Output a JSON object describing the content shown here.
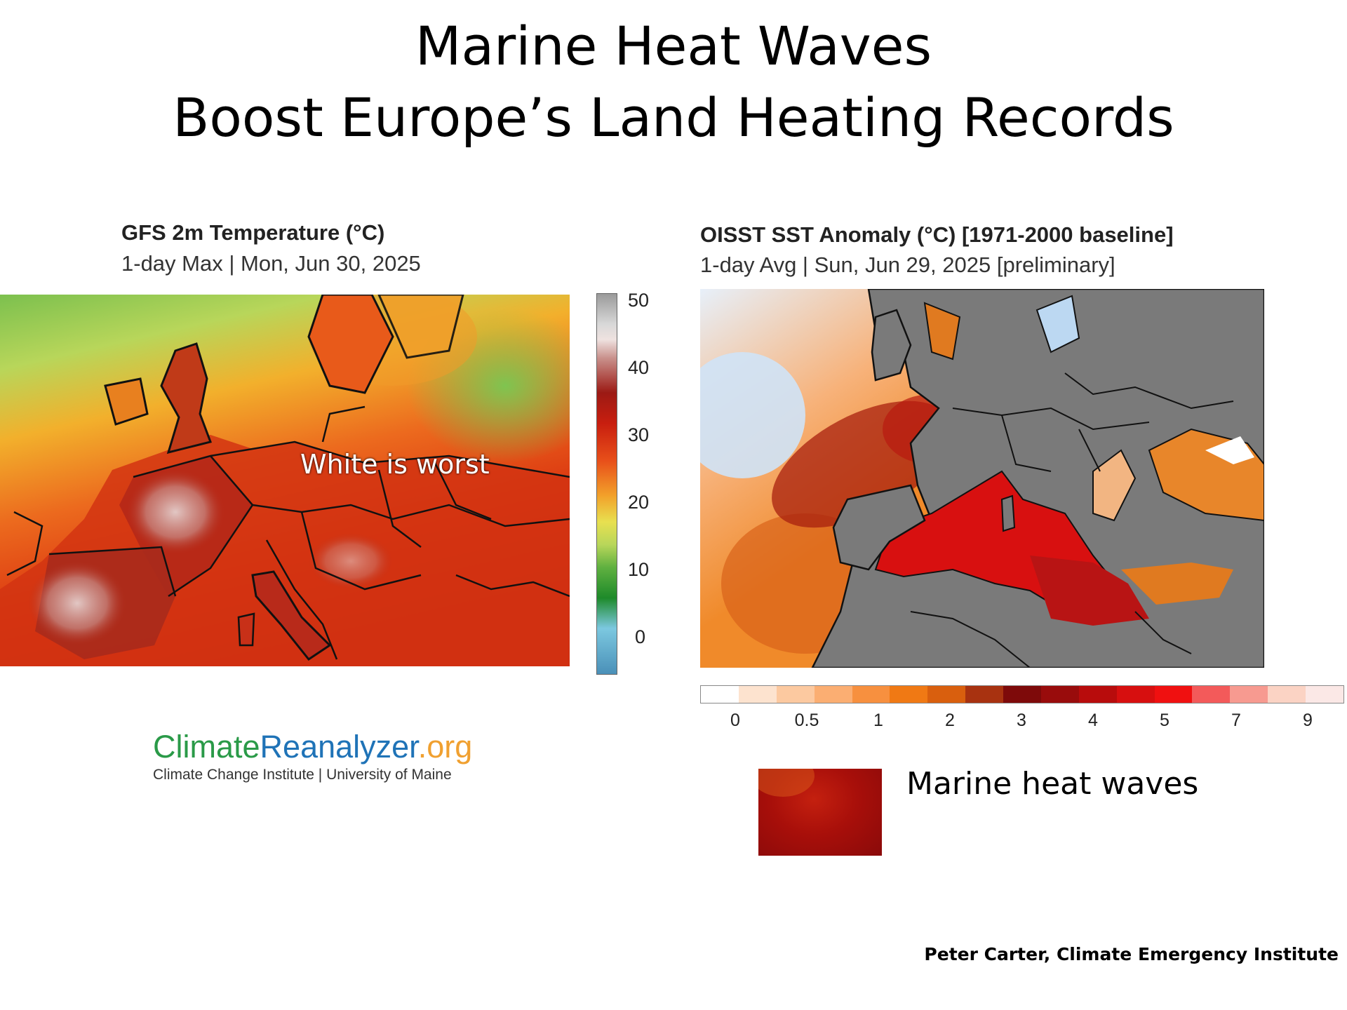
{
  "slide": {
    "title_line1": "Marine Heat Waves",
    "title_line2": "Boost Europe’s  Land Heating Records"
  },
  "left_map": {
    "title": "GFS 2m Temperature (°C)",
    "subtitle": "1-day Max | Mon, Jun 30, 2025",
    "annotation": "White is worst",
    "colorbar_ticks": [
      "50",
      "40",
      "30",
      "20",
      "10",
      "0"
    ],
    "colors": {
      "hot": "#c81e0f",
      "warm": "#e8501a",
      "mild": "#f7a02a",
      "cool": "#b8d65a",
      "cold": "#6fb84a",
      "extreme": "#d9b8b5"
    }
  },
  "right_map": {
    "title": "OISST SST Anomaly (°C) [1971-2000 baseline]",
    "subtitle": "1-day Avg | Sun, Jun 29, 2025 [preliminary]",
    "colorbar_ticks": [
      "0",
      "0.5",
      "1",
      "2",
      "3",
      "4",
      "5",
      "7",
      "9"
    ],
    "colorbar_colors": [
      "#ffffff",
      "#fde3cf",
      "#fcc9a0",
      "#fbae72",
      "#f7903f",
      "#f07914",
      "#d95f0e",
      "#a83210",
      "#7e0a0a",
      "#990c0c",
      "#b80c0c",
      "#d70f0f",
      "#f01010",
      "#f35a5a",
      "#f79a90",
      "#fbd3c4",
      "#fbe8e6"
    ],
    "colors": {
      "land": "#7a7a7a",
      "cool_sea": "#cfe3f7",
      "anomaly_orange": "#f08a2a",
      "anomaly_red": "#c81414"
    }
  },
  "logo": {
    "part1": "Climate",
    "part2": "Reanalyzer",
    "part3": ".org",
    "subtitle": "Climate Change Institute | University of Maine"
  },
  "legend_swatch": {
    "label": "Marine heat waves",
    "color": "#a80f0a"
  },
  "credit": "Peter Carter,  Climate Emergency Institute"
}
